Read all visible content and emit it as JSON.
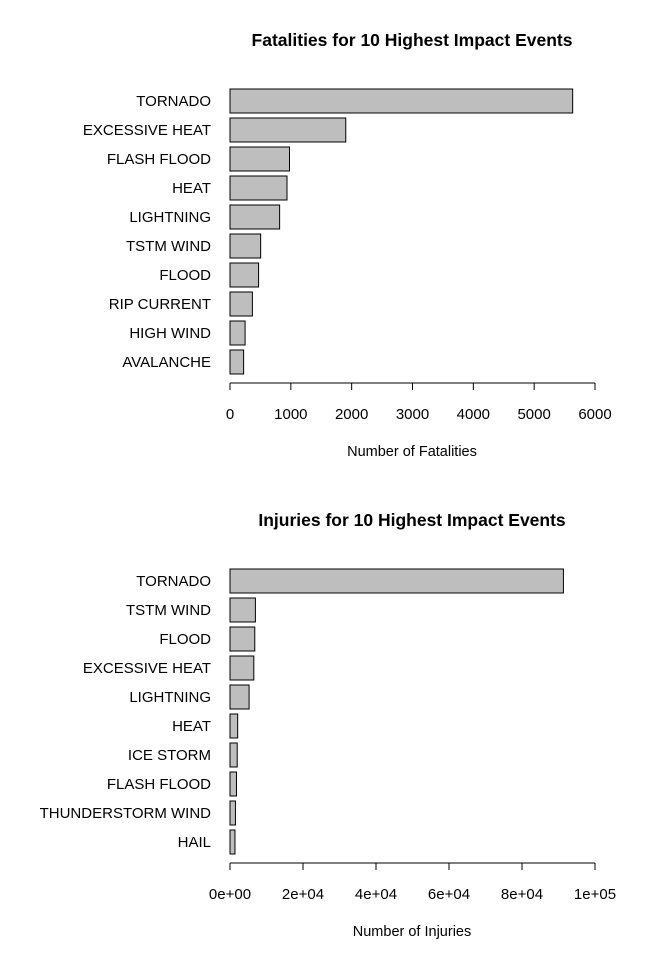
{
  "chart_data": [
    {
      "type": "bar",
      "orientation": "horizontal",
      "title": "Fatalities for 10 Highest Impact Events",
      "xlabel": "Number of Fatalities",
      "ylabel": "",
      "categories": [
        "TORNADO",
        "EXCESSIVE HEAT",
        "FLASH FLOOD",
        "HEAT",
        "LIGHTNING",
        "TSTM WIND",
        "FLOOD",
        "RIP CURRENT",
        "HIGH WIND",
        "AVALANCHE"
      ],
      "values": [
        5633,
        1903,
        978,
        937,
        816,
        504,
        470,
        368,
        248,
        224
      ],
      "xlim": [
        0,
        6000
      ],
      "ticks": [
        0,
        1000,
        2000,
        3000,
        4000,
        5000,
        6000
      ],
      "tick_labels": [
        "0",
        "1000",
        "2000",
        "3000",
        "4000",
        "5000",
        "6000"
      ],
      "bar_color": "#bebebe",
      "grid": false
    },
    {
      "type": "bar",
      "orientation": "horizontal",
      "title": "Injuries for 10 Highest Impact Events",
      "xlabel": "Number of Injuries",
      "ylabel": "",
      "categories": [
        "TORNADO",
        "TSTM WIND",
        "FLOOD",
        "EXCESSIVE HEAT",
        "LIGHTNING",
        "HEAT",
        "ICE STORM",
        "FLASH FLOOD",
        "THUNDERSTORM WIND",
        "HAIL"
      ],
      "values": [
        91346,
        6957,
        6789,
        6525,
        5230,
        2100,
        1975,
        1777,
        1488,
        1361
      ],
      "xlim": [
        0,
        100000
      ],
      "ticks": [
        0,
        20000,
        40000,
        60000,
        80000,
        100000
      ],
      "tick_labels": [
        "0e+00",
        "2e+04",
        "4e+04",
        "6e+04",
        "8e+04",
        "1e+05"
      ],
      "bar_color": "#bebebe",
      "grid": false
    }
  ]
}
